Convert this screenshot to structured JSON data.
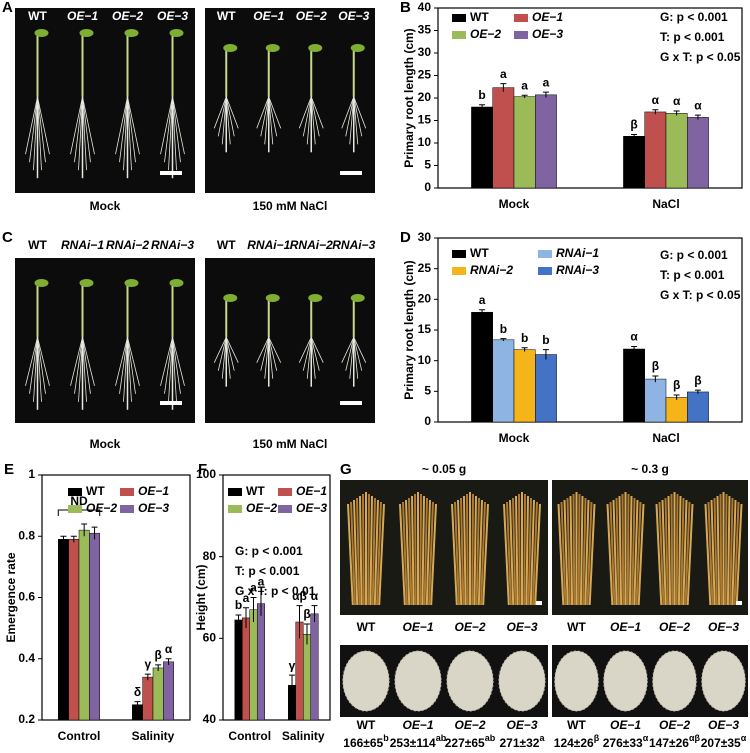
{
  "chart_data": [
    {
      "type": "bar",
      "panel_label": "B",
      "ylabel": "Primary root length (cm)",
      "categories": [
        "Mock",
        "NaCl"
      ],
      "ylim": [
        0,
        40
      ],
      "yticks": [
        0,
        5,
        10,
        15,
        20,
        25,
        30,
        35,
        40
      ],
      "series": [
        {
          "name": "WT",
          "color": "#000000",
          "values": [
            18,
            11.5
          ],
          "errors": [
            0.5,
            0.4
          ],
          "letters": [
            "b",
            "β"
          ]
        },
        {
          "name": "OE−1",
          "color": "#c0504d",
          "values": [
            22.3,
            16.9
          ],
          "errors": [
            0.9,
            0.5
          ],
          "letters": [
            "a",
            "α"
          ]
        },
        {
          "name": "OE−2",
          "color": "#9bbb59",
          "values": [
            20.3,
            16.6
          ],
          "errors": [
            0.3,
            0.5
          ],
          "letters": [
            "a",
            "α"
          ]
        },
        {
          "name": "OE−3",
          "color": "#8064a2",
          "values": [
            20.7,
            15.7
          ],
          "errors": [
            0.6,
            0.5
          ],
          "letters": [
            "a",
            "α"
          ]
        }
      ],
      "stats": [
        "G: p < 0.001",
        "T: p < 0.001",
        "G x T: p < 0.05"
      ]
    },
    {
      "type": "bar",
      "panel_label": "D",
      "ylabel": "Primary root length (cm)",
      "categories": [
        "Mock",
        "NaCl"
      ],
      "ylim": [
        0,
        30
      ],
      "yticks": [
        0,
        5,
        10,
        15,
        20,
        25,
        30
      ],
      "series": [
        {
          "name": "WT",
          "color": "#000000",
          "values": [
            17.9,
            11.9
          ],
          "errors": [
            0.4,
            0.4
          ],
          "letters": [
            "a",
            "α"
          ]
        },
        {
          "name": "RNAi−1",
          "color": "#8db4e2",
          "values": [
            13.4,
            7.0
          ],
          "errors": [
            0.2,
            0.5
          ],
          "letters": [
            "b",
            "β"
          ]
        },
        {
          "name": "RNAi−2",
          "color": "#f4b41a",
          "values": [
            11.8,
            4.0
          ],
          "errors": [
            0.3,
            0.4
          ],
          "letters": [
            "b",
            "β"
          ]
        },
        {
          "name": "RNAi−3",
          "color": "#4472c4",
          "values": [
            11.0,
            4.9
          ],
          "errors": [
            0.8,
            0.3
          ],
          "letters": [
            "b",
            "β"
          ]
        }
      ],
      "stats": [
        "G: p < 0.001",
        "T: p < 0.001",
        "G x T: p < 0.05"
      ]
    },
    {
      "type": "bar",
      "panel_label": "E",
      "ylabel": "Emergence rate",
      "categories": [
        "Control",
        "Salinity"
      ],
      "ylim": [
        0.2,
        1
      ],
      "yticks": [
        0.2,
        0.4,
        0.6,
        0.8,
        1
      ],
      "group_note": "ND",
      "series": [
        {
          "name": "WT",
          "color": "#000000",
          "values": [
            0.79,
            0.25
          ],
          "errors": [
            0.01,
            0.01
          ],
          "letters": [
            null,
            "δ"
          ]
        },
        {
          "name": "OE−1",
          "color": "#c0504d",
          "values": [
            0.79,
            0.34
          ],
          "errors": [
            0.01,
            0.01
          ],
          "letters": [
            null,
            "γ"
          ]
        },
        {
          "name": "OE−2",
          "color": "#9bbb59",
          "values": [
            0.82,
            0.37
          ],
          "errors": [
            0.02,
            0.01
          ],
          "letters": [
            null,
            "β"
          ]
        },
        {
          "name": "OE−3",
          "color": "#8064a2",
          "values": [
            0.81,
            0.39
          ],
          "errors": [
            0.02,
            0.01
          ],
          "letters": [
            null,
            "α"
          ]
        }
      ]
    },
    {
      "type": "bar",
      "panel_label": "F",
      "ylabel": "Height (cm)",
      "categories": [
        "Control",
        "Salinity"
      ],
      "ylim": [
        40,
        100
      ],
      "yticks": [
        40,
        60,
        80,
        100
      ],
      "series": [
        {
          "name": "WT",
          "color": "#000000",
          "values": [
            64.5,
            48.5
          ],
          "errors": [
            1.2,
            2.5
          ],
          "letters": [
            "b",
            "γ"
          ]
        },
        {
          "name": "OE−1",
          "color": "#c0504d",
          "values": [
            65,
            64
          ],
          "errors": [
            2.5,
            4
          ],
          "letters": [
            "a",
            "αβ"
          ]
        },
        {
          "name": "OE−2",
          "color": "#9bbb59",
          "values": [
            67,
            61
          ],
          "errors": [
            3,
            2.5
          ],
          "letters": [
            "a",
            "β"
          ]
        },
        {
          "name": "OE−3",
          "color": "#8064a2",
          "values": [
            68.5,
            66
          ],
          "errors": [
            3,
            2
          ],
          "letters": [
            "a",
            "α"
          ]
        }
      ],
      "stats": [
        "G: p < 0.001",
        "T: p < 0.001",
        "G x T: p < 0.01"
      ]
    }
  ],
  "photo_panels": [
    {
      "panel_label": "A",
      "photos": [
        {
          "labels": [
            "WT",
            "OE−1",
            "OE−2",
            "OE−3"
          ],
          "caption": "Mock"
        },
        {
          "labels": [
            "WT",
            "OE−1",
            "OE−2",
            "OE−3"
          ],
          "caption": "150 mM NaCl"
        }
      ]
    },
    {
      "panel_label": "C",
      "photos": [
        {
          "labels": [
            "WT",
            "RNAi−1",
            "RNAi−2",
            "RNAi−3"
          ],
          "caption": "Mock"
        },
        {
          "labels": [
            "WT",
            "RNAi−1",
            "RNAi−2",
            "RNAi−3"
          ],
          "caption": "150 mM NaCl"
        }
      ]
    },
    {
      "panel_label": "G",
      "photos": [
        {
          "title": "~ 0.05 g",
          "labels": [
            "WT",
            "OE−1",
            "OE−2",
            "OE−3"
          ]
        },
        {
          "title": "~ 0.3 g",
          "labels": [
            "WT",
            "OE−1",
            "OE−2",
            "OE−3"
          ]
        }
      ],
      "seeds": [
        {
          "label": "WT",
          "value": "166±65",
          "letter": "b"
        },
        {
          "label": "OE−1",
          "value": "253±114",
          "letter": "ab"
        },
        {
          "label": "OE−2",
          "value": "227±65",
          "letter": "ab"
        },
        {
          "label": "OE−3",
          "value": "271±32",
          "letter": "a"
        },
        {
          "label": "WT",
          "value": "124±26",
          "letter": "β"
        },
        {
          "label": "OE−1",
          "value": "276±33",
          "letter": "α"
        },
        {
          "label": "OE−2",
          "value": "147±26",
          "letter": "αβ"
        },
        {
          "label": "OE−3",
          "value": "207±35",
          "letter": "α"
        }
      ]
    }
  ]
}
